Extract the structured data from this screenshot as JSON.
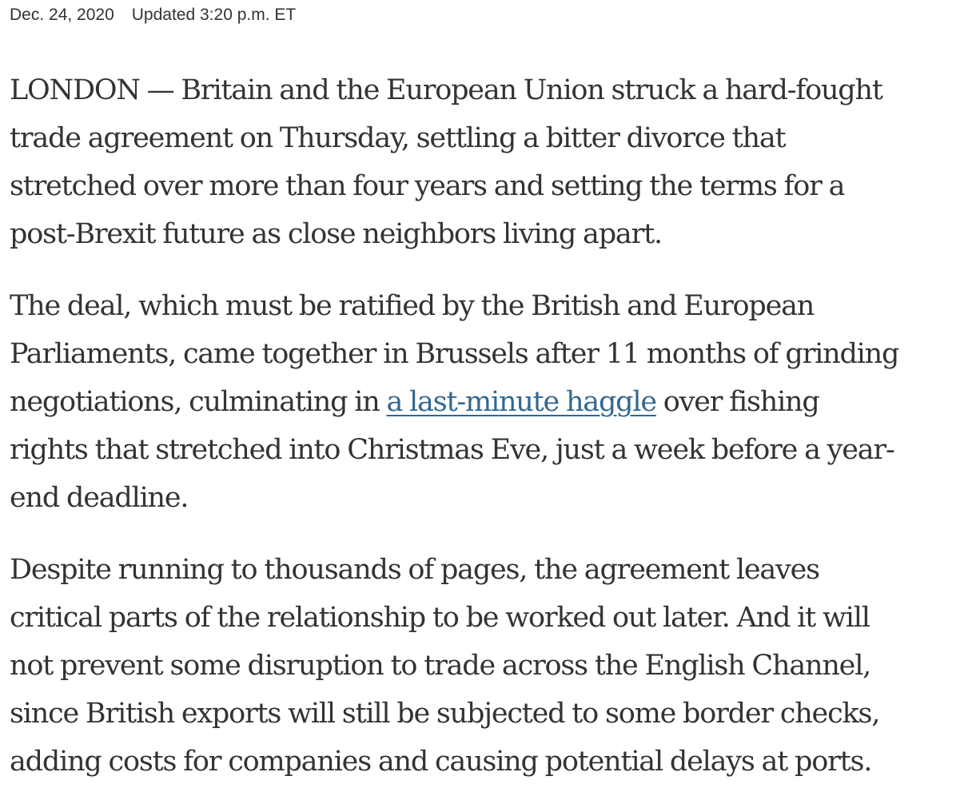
{
  "meta": {
    "date": "Dec. 24, 2020",
    "updated": "Updated 3:20 p.m. ET"
  },
  "paragraphs": {
    "p1": [
      "LONDON — Britain and the European Union struck a hard-fought",
      "trade agreement on Thursday, settling a bitter divorce that",
      "stretched over more than four years and setting the terms for a",
      "post-Brexit future as close neighbors living apart."
    ],
    "p2": {
      "line1": "The deal, which must be ratified by the British and European",
      "line2": "Parliaments, came together in Brussels after 11 months of grinding",
      "line3_before": "negotiations, culminating in ",
      "line3_link": "a last-minute haggle",
      "line3_after": " over fishing",
      "line4": "rights that stretched into Christmas Eve, just a week before a year-",
      "line5": "end deadline."
    },
    "p3": [
      "Despite running to thousands of pages, the agreement leaves",
      "critical parts of the relationship to be worked out later. And it will",
      "not prevent some disruption to trade across the English Channel,",
      "since British exports will still be subjected to some border checks,",
      "adding costs for companies and causing potential delays at ports."
    ]
  },
  "colors": {
    "text": "#333333",
    "link": "#326891",
    "background": "#ffffff"
  }
}
